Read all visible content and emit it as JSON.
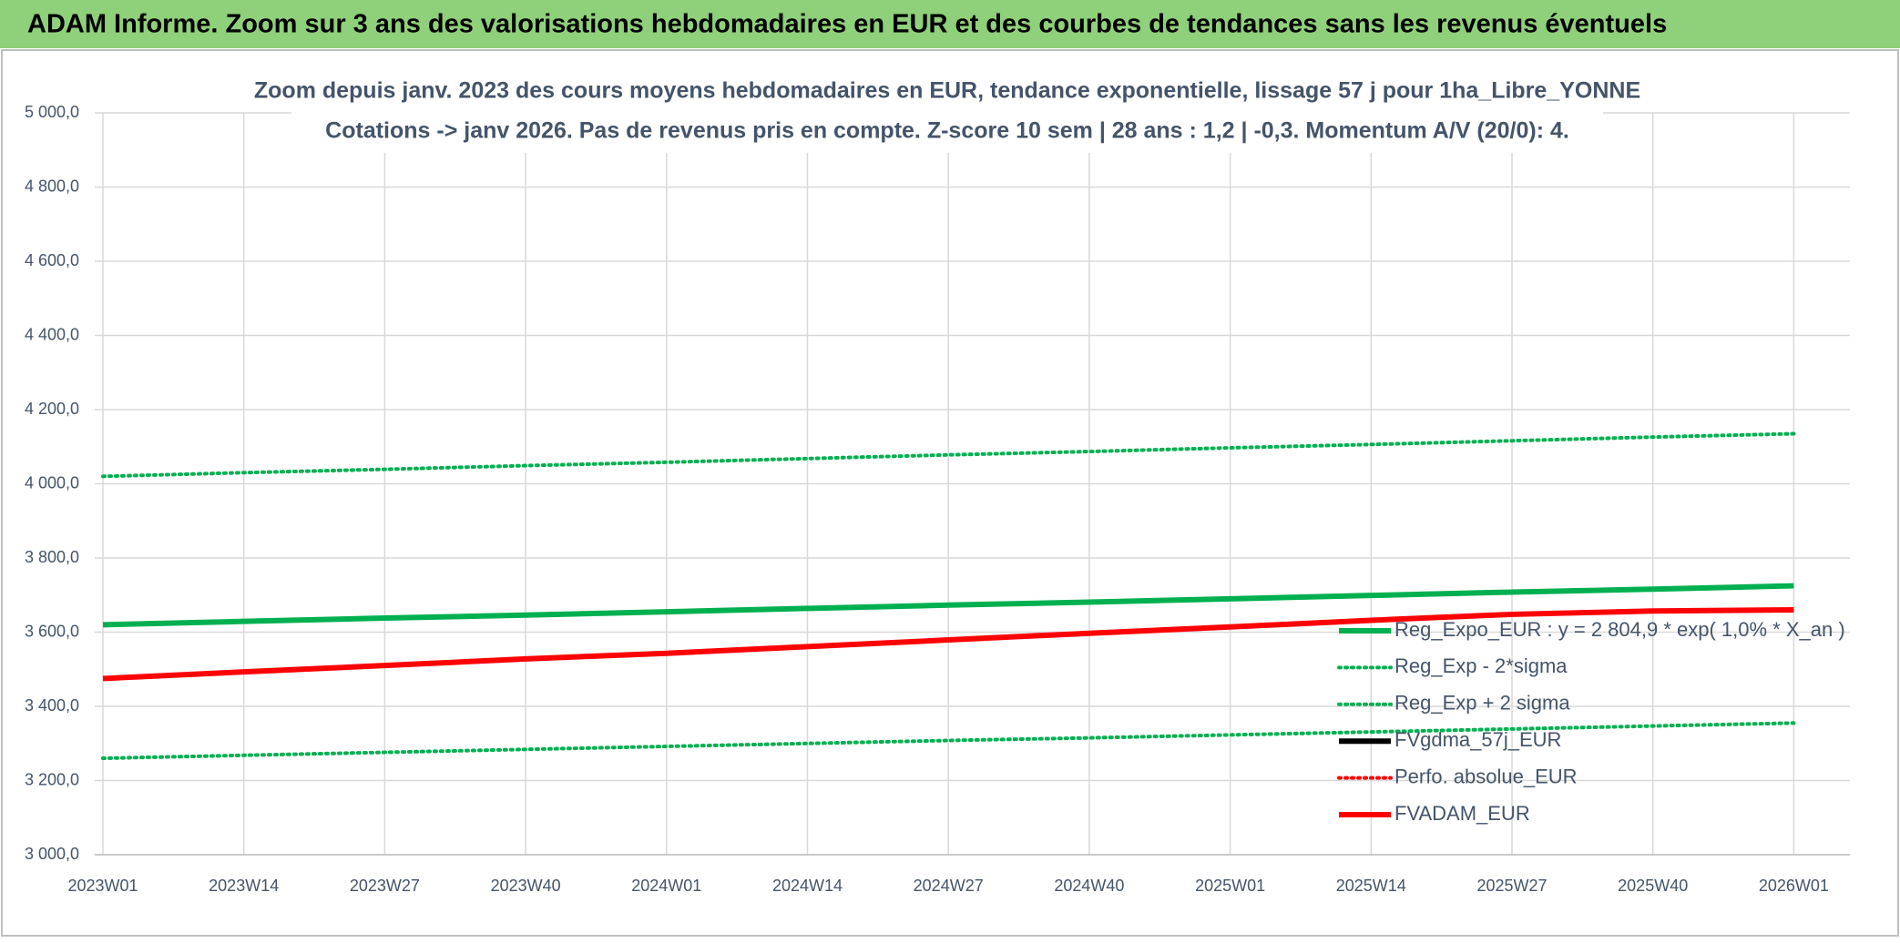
{
  "header": {
    "title": "ADAM Informe. Zoom sur 3 ans des valorisations hebdomadaires en EUR et des courbes de tendances sans les revenus éventuels"
  },
  "chart_data": {
    "type": "line",
    "title": "Zoom depuis janv. 2023 des cours moyens hebdomadaires en EUR, tendance exponentielle, lissage 57 j pour 1ha_Libre_YONNE",
    "subtitle": "Cotations -> janv 2026. Pas de revenus pris en compte. Z-score 10 sem | 28 ans : 1,2 | -0,3. Momentum A/V (20/0): 4.",
    "categories": [
      "2023W01",
      "2023W14",
      "2023W27",
      "2023W40",
      "2024W01",
      "2024W14",
      "2024W27",
      "2024W40",
      "2025W01",
      "2025W14",
      "2025W27",
      "2025W40",
      "2026W01"
    ],
    "series": [
      {
        "name": "Reg_Expo_EUR : y = 2 804,9 * exp( 1,0% *  X_an )",
        "color": "#00b050",
        "style": "solid",
        "values": [
          3620,
          3629,
          3638,
          3646,
          3655,
          3664,
          3673,
          3681,
          3690,
          3699,
          3708,
          3716,
          3725
        ]
      },
      {
        "name": "Reg_Exp - 2*sigma",
        "color": "#00b050",
        "style": "dotted",
        "values": [
          3260,
          3268,
          3276,
          3284,
          3292,
          3300,
          3308,
          3315,
          3323,
          3331,
          3339,
          3347,
          3355
        ]
      },
      {
        "name": "Reg_Exp + 2 sigma",
        "color": "#00b050",
        "style": "dotted",
        "values": [
          4020,
          4030,
          4039,
          4049,
          4058,
          4068,
          4078,
          4087,
          4097,
          4106,
          4116,
          4126,
          4135
        ]
      },
      {
        "name": "FVgdma_57j_EUR",
        "color": "#000000",
        "style": "solid",
        "values": [
          null,
          null,
          null,
          null,
          null,
          null,
          null,
          null,
          null,
          null,
          null,
          null,
          null
        ]
      },
      {
        "name": "Perfo. absolue_EUR",
        "color": "#ff0000",
        "style": "dotted",
        "values": [
          null,
          null,
          null,
          null,
          null,
          null,
          null,
          null,
          null,
          null,
          null,
          null,
          null
        ]
      },
      {
        "name": "FVADAM_EUR",
        "color": "#ff0000",
        "style": "solid",
        "values": [
          3475,
          3493,
          3510,
          3528,
          3543,
          3561,
          3579,
          3597,
          3614,
          3632,
          3648,
          3657,
          3660
        ]
      }
    ],
    "ylim": [
      3000,
      5000
    ],
    "yticks": [
      {
        "value": 3000,
        "label": "3 000,0"
      },
      {
        "value": 3200,
        "label": "3 200,0"
      },
      {
        "value": 3400,
        "label": "3 400,0"
      },
      {
        "value": 3600,
        "label": "3 600,0"
      },
      {
        "value": 3800,
        "label": "3 800,0"
      },
      {
        "value": 4000,
        "label": "4 000,0"
      },
      {
        "value": 4200,
        "label": "4 200,0"
      },
      {
        "value": 4400,
        "label": "4 400,0"
      },
      {
        "value": 4600,
        "label": "4 600,0"
      },
      {
        "value": 4800,
        "label": "4 800,0"
      },
      {
        "value": 5000,
        "label": "5 000,0"
      }
    ],
    "grid": true
  }
}
